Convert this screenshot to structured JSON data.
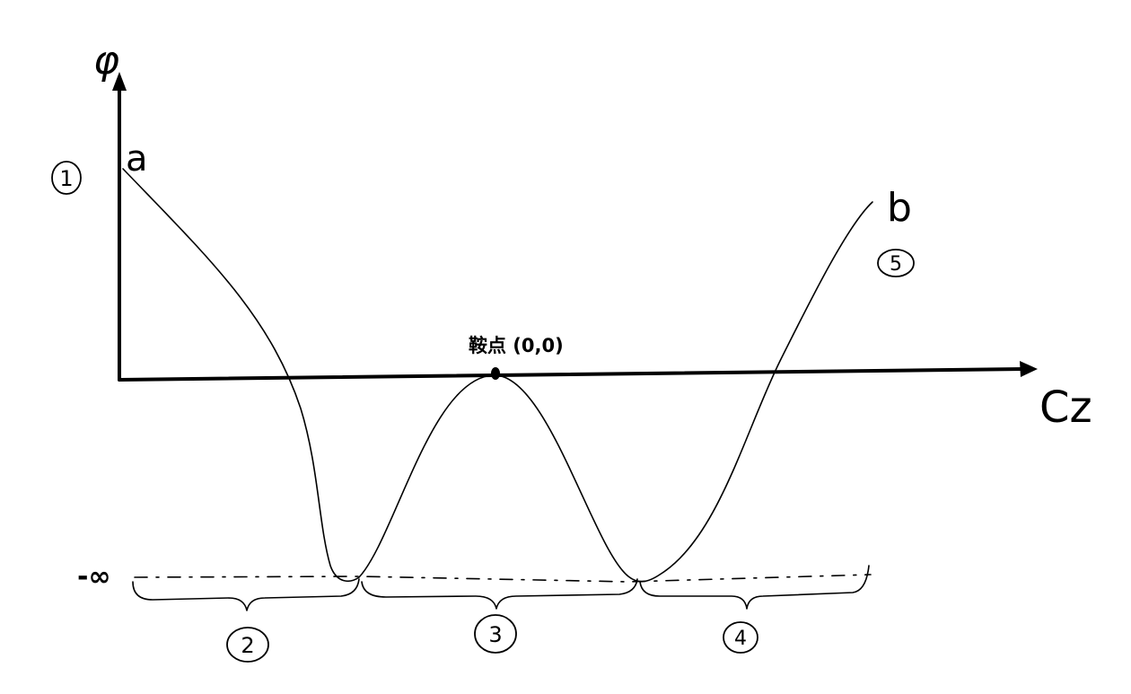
{
  "axes": {
    "y_label": "φ",
    "x_label": "Cz"
  },
  "curve": {
    "start_label": "a",
    "end_label": "b"
  },
  "saddle_point": {
    "label": "鞍点 (0,0)"
  },
  "minus_infinity_label": "-∞",
  "region_markers": [
    "1",
    "2",
    "3",
    "4",
    "5"
  ],
  "colors": {
    "ink": "#000000",
    "background": "#ffffff"
  }
}
